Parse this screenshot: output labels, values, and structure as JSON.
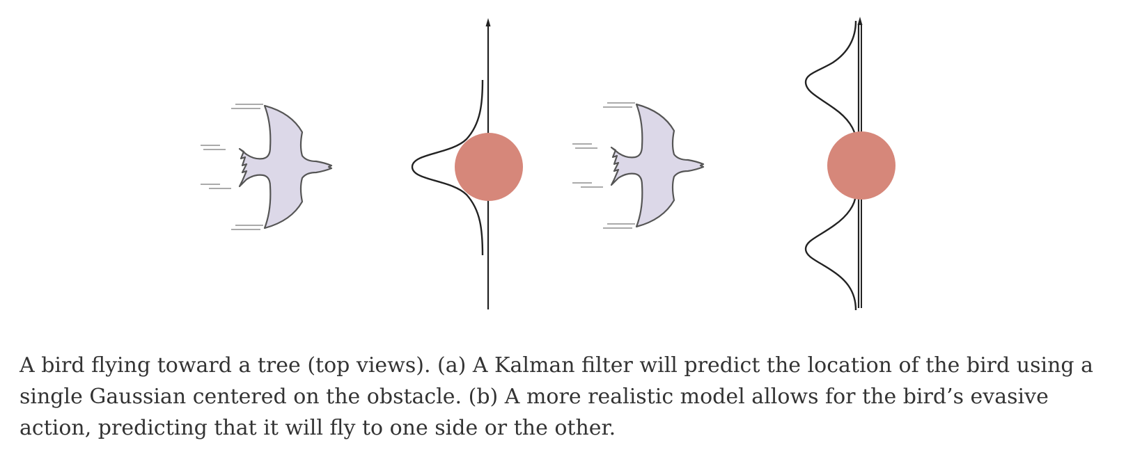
{
  "caption": "A bird flying toward a tree (top views). (a) A Kalman filter will predict the location of the bird using a single Gaussian centered on the obstacle. (b) A more realistic model allows for the bird’s evasive action, predicting that it will fly to one side or the other.",
  "colors": {
    "bird_fill": "#dcd8e8",
    "bird_stroke": "#555555",
    "tree_fill": "#d6877a",
    "axis_stroke": "#222222",
    "motion_lines": "#aaaaaa",
    "caption_text": "#333333"
  },
  "icons": {
    "bird": "bird-icon",
    "tree": "tree-obstacle",
    "distribution": "probability-curve"
  }
}
